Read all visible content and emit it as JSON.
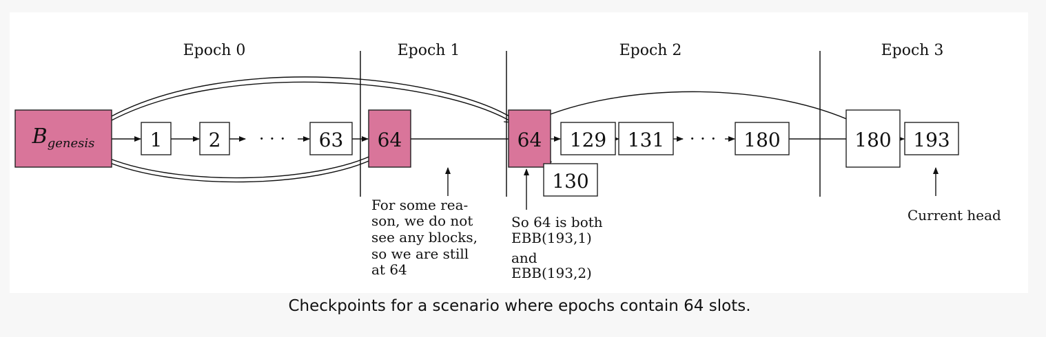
{
  "epochs": [
    "Epoch 0",
    "Epoch 1",
    "Epoch 2",
    "Epoch 3"
  ],
  "blocks": {
    "genesis_base": "B",
    "genesis_sub": "genesis",
    "b1": "1",
    "b2": "2",
    "ellipsis": "· · ·",
    "b63": "63",
    "b64_epoch1": "64",
    "b64_epoch2": "64",
    "b129": "129",
    "b130": "130",
    "b131": "131",
    "b180_epoch2": "180",
    "b180_epoch3": "180",
    "b193": "193"
  },
  "annotations": {
    "epoch1_note": [
      "For some rea-",
      "son, we do not",
      "see any blocks,",
      "so we are still",
      "at 64"
    ],
    "epoch2_note": [
      "So 64 is both",
      "EBB(193,1)",
      "and",
      "EBB(193,2)"
    ],
    "head_note": "Current head"
  },
  "colors": {
    "checkpoint_fill": "#d9759a",
    "line": "#222222"
  },
  "caption": "Checkpoints for a scenario where epochs contain 64 slots."
}
